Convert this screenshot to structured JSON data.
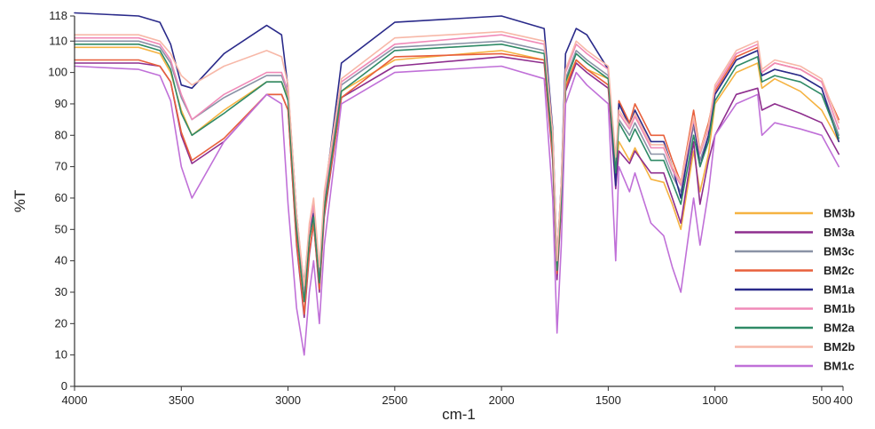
{
  "chart_data": {
    "type": "line",
    "xlabel": "cm-1",
    "ylabel": "%T",
    "xlim": [
      4000,
      400
    ],
    "ylim": [
      0,
      118
    ],
    "x_reversed": true,
    "xticks": [
      4000,
      3500,
      3000,
      2500,
      2000,
      1500,
      1000,
      500,
      400
    ],
    "xtick_labels": [
      "4000",
      "3500",
      "3000",
      "2500",
      "2000",
      "1500",
      "1000",
      "500",
      "400"
    ],
    "yticks": [
      0,
      10,
      20,
      30,
      40,
      50,
      60,
      70,
      80,
      90,
      100,
      110,
      118
    ],
    "grid": false,
    "legend_position": "right",
    "series": [
      {
        "name": "BM3b",
        "color": "#f5b342",
        "x": [
          4000,
          3700,
          3600,
          3550,
          3500,
          3450,
          3300,
          3100,
          3030,
          3000,
          2960,
          2924,
          2900,
          2880,
          2853,
          2830,
          2750,
          2500,
          2000,
          1800,
          1760,
          1740,
          1720,
          1700,
          1650,
          1600,
          1500,
          1465,
          1450,
          1400,
          1375,
          1300,
          1240,
          1200,
          1160,
          1100,
          1070,
          1030,
          1000,
          900,
          800,
          780,
          720,
          600,
          500,
          420
        ],
        "y": [
          108,
          108,
          106,
          100,
          88,
          80,
          88,
          97,
          97,
          92,
          50,
          30,
          48,
          55,
          35,
          58,
          94,
          104,
          107,
          104,
          75,
          37,
          60,
          96,
          104,
          101,
          98,
          66,
          78,
          72,
          76,
          66,
          65,
          58,
          50,
          75,
          62,
          74,
          90,
          100,
          103,
          95,
          98,
          94,
          88,
          78
        ]
      },
      {
        "name": "BM3a",
        "color": "#8e2e8e",
        "x": [
          4000,
          3700,
          3600,
          3550,
          3500,
          3450,
          3300,
          3100,
          3030,
          3000,
          2960,
          2924,
          2900,
          2880,
          2853,
          2830,
          2750,
          2500,
          2000,
          1800,
          1760,
          1740,
          1720,
          1700,
          1650,
          1600,
          1500,
          1465,
          1450,
          1400,
          1375,
          1300,
          1240,
          1200,
          1160,
          1100,
          1070,
          1030,
          1000,
          900,
          800,
          780,
          720,
          600,
          500,
          420
        ],
        "y": [
          103,
          103,
          102,
          97,
          80,
          71,
          78,
          93,
          93,
          88,
          45,
          22,
          42,
          52,
          30,
          54,
          92,
          102,
          105,
          103,
          72,
          34,
          57,
          94,
          103,
          100,
          95,
          63,
          75,
          71,
          75,
          68,
          68,
          60,
          52,
          78,
          58,
          72,
          80,
          93,
          95,
          88,
          90,
          87,
          84,
          74
        ]
      },
      {
        "name": "BM3c",
        "color": "#8a92a6",
        "x": [
          4000,
          3700,
          3600,
          3550,
          3500,
          3450,
          3300,
          3100,
          3030,
          3000,
          2960,
          2924,
          2900,
          2880,
          2853,
          2830,
          2750,
          2500,
          2000,
          1800,
          1760,
          1740,
          1720,
          1700,
          1650,
          1600,
          1500,
          1465,
          1450,
          1400,
          1375,
          1300,
          1240,
          1200,
          1160,
          1100,
          1070,
          1030,
          1000,
          900,
          800,
          780,
          720,
          600,
          500,
          420
        ],
        "y": [
          110,
          110,
          108,
          103,
          92,
          85,
          92,
          99,
          99,
          93,
          52,
          33,
          50,
          56,
          37,
          60,
          96,
          108,
          110,
          107,
          78,
          38,
          62,
          98,
          107,
          104,
          99,
          70,
          85,
          80,
          84,
          74,
          74,
          67,
          62,
          83,
          72,
          80,
          93,
          104,
          107,
          99,
          101,
          99,
          95,
          80
        ]
      },
      {
        "name": "BM2c",
        "color": "#e8603c",
        "x": [
          4000,
          3700,
          3600,
          3550,
          3500,
          3450,
          3300,
          3100,
          3030,
          3000,
          2960,
          2924,
          2900,
          2880,
          2853,
          2830,
          2750,
          2500,
          2000,
          1800,
          1760,
          1740,
          1720,
          1700,
          1650,
          1600,
          1500,
          1465,
          1450,
          1400,
          1375,
          1300,
          1240,
          1200,
          1160,
          1100,
          1070,
          1030,
          1000,
          900,
          800,
          780,
          720,
          600,
          500,
          420
        ],
        "y": [
          104,
          104,
          102,
          97,
          81,
          72,
          79,
          93,
          93,
          88,
          46,
          23,
          43,
          52,
          31,
          55,
          92,
          105,
          106,
          104,
          73,
          36,
          58,
          95,
          104,
          101,
          96,
          67,
          91,
          84,
          90,
          80,
          80,
          72,
          65,
          88,
          75,
          84,
          94,
          105,
          108,
          100,
          103,
          101,
          97,
          85
        ]
      },
      {
        "name": "BM1a",
        "color": "#2a2a8a",
        "x": [
          4000,
          3700,
          3600,
          3550,
          3500,
          3450,
          3300,
          3100,
          3030,
          3000,
          2960,
          2924,
          2900,
          2880,
          2853,
          2830,
          2750,
          2500,
          2000,
          1800,
          1760,
          1740,
          1720,
          1700,
          1650,
          1600,
          1500,
          1465,
          1450,
          1400,
          1375,
          1300,
          1240,
          1200,
          1160,
          1100,
          1070,
          1030,
          1000,
          900,
          800,
          780,
          720,
          600,
          500,
          420
        ],
        "y": [
          119,
          118,
          116,
          109,
          96,
          95,
          106,
          115,
          112,
          95,
          55,
          30,
          50,
          55,
          35,
          60,
          103,
          116,
          118,
          114,
          82,
          40,
          65,
          106,
          114,
          112,
          101,
          64,
          90,
          83,
          88,
          78,
          78,
          70,
          60,
          85,
          70,
          80,
          93,
          104,
          107,
          99,
          101,
          99,
          95,
          78
        ]
      },
      {
        "name": "BM1b",
        "color": "#f08ab8",
        "x": [
          4000,
          3700,
          3600,
          3550,
          3500,
          3450,
          3300,
          3100,
          3030,
          3000,
          2960,
          2924,
          2900,
          2880,
          2853,
          2830,
          2750,
          2500,
          2000,
          1800,
          1760,
          1740,
          1720,
          1700,
          1650,
          1600,
          1500,
          1465,
          1450,
          1400,
          1375,
          1300,
          1240,
          1200,
          1160,
          1100,
          1070,
          1030,
          1000,
          900,
          800,
          780,
          720,
          600,
          500,
          420
        ],
        "y": [
          111,
          111,
          109,
          104,
          93,
          85,
          93,
          100,
          100,
          94,
          53,
          30,
          50,
          58,
          36,
          60,
          97,
          109,
          112,
          109,
          80,
          39,
          64,
          100,
          109,
          106,
          101,
          72,
          87,
          82,
          86,
          76,
          76,
          69,
          64,
          85,
          74,
          82,
          95,
          106,
          109,
          100,
          103,
          101,
          97,
          82
        ]
      },
      {
        "name": "BM2a",
        "color": "#2f8a66",
        "x": [
          4000,
          3700,
          3600,
          3550,
          3500,
          3450,
          3300,
          3100,
          3030,
          3000,
          2960,
          2924,
          2900,
          2880,
          2853,
          2830,
          2750,
          2500,
          2000,
          1800,
          1760,
          1740,
          1720,
          1700,
          1650,
          1600,
          1500,
          1465,
          1450,
          1400,
          1375,
          1300,
          1240,
          1200,
          1160,
          1100,
          1070,
          1030,
          1000,
          900,
          800,
          780,
          720,
          600,
          500,
          420
        ],
        "y": [
          109,
          109,
          107,
          101,
          87,
          80,
          87,
          97,
          97,
          91,
          50,
          27,
          47,
          54,
          33,
          57,
          94,
          107,
          109,
          106,
          76,
          37,
          60,
          97,
          106,
          103,
          98,
          68,
          84,
          78,
          82,
          72,
          72,
          65,
          58,
          80,
          70,
          78,
          91,
          102,
          105,
          97,
          99,
          97,
          93,
          79
        ]
      },
      {
        "name": "BM2b",
        "color": "#f7b8a8",
        "x": [
          4000,
          3700,
          3600,
          3550,
          3500,
          3450,
          3300,
          3100,
          3030,
          3000,
          2960,
          2924,
          2900,
          2880,
          2853,
          2830,
          2750,
          2500,
          2000,
          1800,
          1760,
          1740,
          1720,
          1700,
          1650,
          1600,
          1500,
          1465,
          1450,
          1400,
          1375,
          1300,
          1240,
          1200,
          1160,
          1100,
          1070,
          1030,
          1000,
          900,
          800,
          780,
          720,
          600,
          500,
          420
        ],
        "y": [
          112,
          112,
          110,
          106,
          99,
          96,
          102,
          107,
          105,
          96,
          55,
          32,
          52,
          60,
          38,
          62,
          98,
          111,
          113,
          110,
          81,
          40,
          65,
          101,
          110,
          107,
          102,
          73,
          88,
          83,
          87,
          77,
          77,
          70,
          65,
          86,
          75,
          83,
          96,
          107,
          110,
          101,
          104,
          102,
          98,
          84
        ]
      },
      {
        "name": "BM1c",
        "color": "#c070d8",
        "x": [
          4000,
          3700,
          3600,
          3550,
          3500,
          3450,
          3300,
          3100,
          3030,
          3000,
          2960,
          2924,
          2900,
          2880,
          2853,
          2830,
          2750,
          2500,
          2000,
          1800,
          1760,
          1740,
          1720,
          1700,
          1650,
          1600,
          1500,
          1465,
          1450,
          1400,
          1375,
          1300,
          1240,
          1200,
          1160,
          1100,
          1070,
          1030,
          1000,
          900,
          800,
          780,
          720,
          600,
          500,
          420
        ],
        "y": [
          102,
          101,
          99,
          91,
          70,
          60,
          78,
          93,
          90,
          58,
          25,
          10,
          30,
          40,
          20,
          45,
          90,
          100,
          102,
          98,
          60,
          17,
          45,
          90,
          100,
          96,
          90,
          40,
          70,
          62,
          68,
          52,
          48,
          38,
          30,
          60,
          45,
          62,
          80,
          90,
          93,
          80,
          84,
          82,
          80,
          70
        ]
      }
    ]
  }
}
